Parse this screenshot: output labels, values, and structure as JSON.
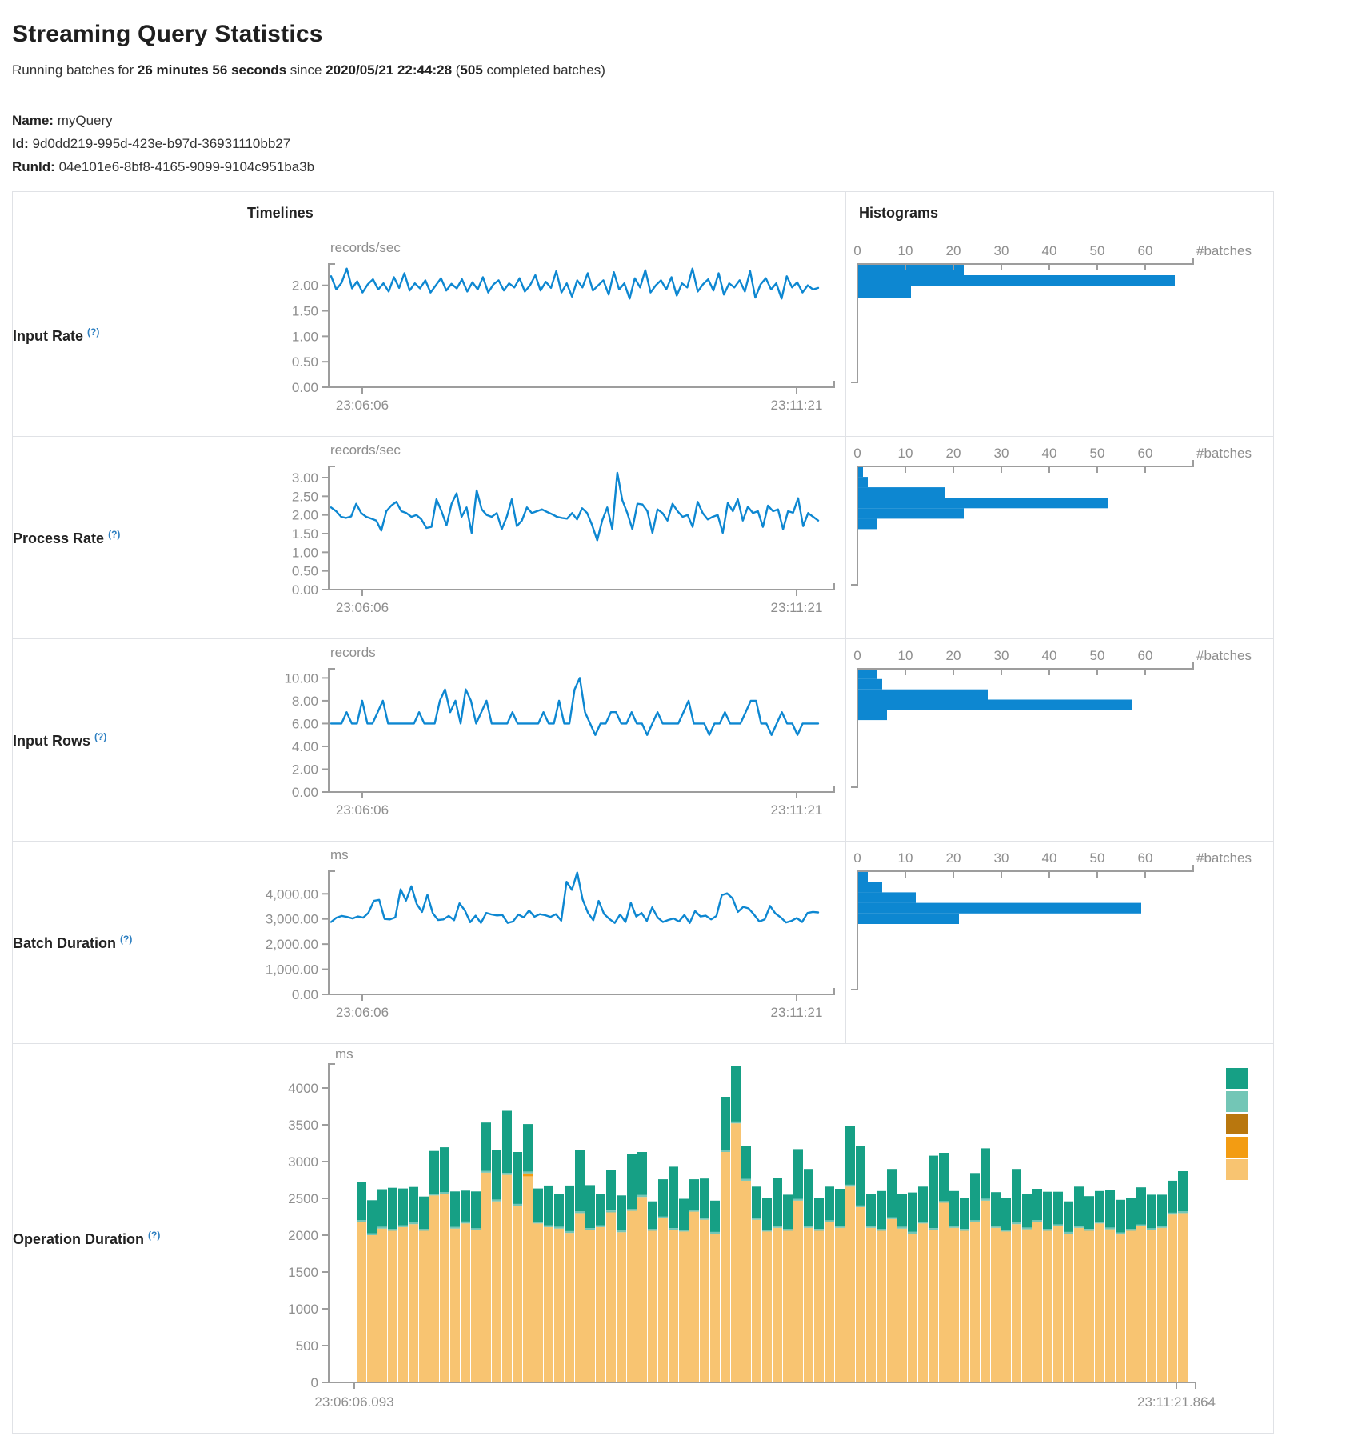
{
  "page": {
    "title": "Streaming Query Statistics",
    "subtitle": {
      "prefix": "Running batches for ",
      "duration": "26 minutes 56 seconds",
      "mid": " since ",
      "since": "2020/05/21 22:44:28",
      "paren_open": " (",
      "batches": "505",
      "paren_close": " completed batches)"
    },
    "meta": {
      "name_label": "Name:",
      "name": "myQuery",
      "id_label": "Id:",
      "id": "9d0dd219-995d-423e-b97d-36931110bb27",
      "runid_label": "RunId:",
      "runid": "04e101e6-8bf8-4165-9099-9104c951ba3b"
    }
  },
  "table": {
    "header": {
      "timelines": "Timelines",
      "histograms": "Histograms"
    }
  },
  "colors": {
    "accent_blue": "#0d87d1",
    "axis": "#9d9d9d",
    "tick_text": "#8e8e8e",
    "help": "#2d7fc1",
    "green": "#16a085",
    "light_teal": "#73c6b6",
    "dark_gold": "#b9770e",
    "orange": "#f39c12",
    "tan": "#f8c471",
    "border": "#e0e2e6"
  },
  "chart_data": [
    {
      "row": "input-rate",
      "label": "Input Rate",
      "help": "(?)",
      "type": "line",
      "timeline": {
        "unit": "records/sec",
        "ymax": 2.42,
        "yticks": [
          0,
          0.5,
          1,
          1.5,
          2
        ],
        "ytick_labels": [
          "0.00",
          "0.50",
          "1.00",
          "1.50",
          "2.00"
        ],
        "x_start": "23:06:06",
        "x_end": "23:11:21",
        "values": [
          2.18,
          1.92,
          2.05,
          2.33,
          1.94,
          2.08,
          1.86,
          2.02,
          2.12,
          1.92,
          2.04,
          1.88,
          2.16,
          1.95,
          2.24,
          1.9,
          2.04,
          1.94,
          2.1,
          1.86,
          2.0,
          2.14,
          1.9,
          2.03,
          1.94,
          2.12,
          1.88,
          2.06,
          1.92,
          2.16,
          1.86,
          2.02,
          2.1,
          1.9,
          2.04,
          1.96,
          2.14,
          1.88,
          2.0,
          2.2,
          1.9,
          2.07,
          1.95,
          2.28,
          1.86,
          2.04,
          1.78,
          2.1,
          1.96,
          2.24,
          1.9,
          2.0,
          2.1,
          1.82,
          2.26,
          1.92,
          2.04,
          1.74,
          2.14,
          1.96,
          2.3,
          1.86,
          2.0,
          2.1,
          1.92,
          2.16,
          1.8,
          2.04,
          1.96,
          2.33,
          1.88,
          2.02,
          2.12,
          1.9,
          2.24,
          1.82,
          2.04,
          1.96,
          2.1,
          1.88,
          2.28,
          1.76,
          2.02,
          2.14,
          1.92,
          2.04,
          1.74,
          2.18,
          1.96,
          2.06,
          1.86,
          2.0,
          1.92,
          1.95
        ]
      },
      "histogram": {
        "unit": "#batches",
        "xmax": 70,
        "xticks": [
          0,
          10,
          20,
          30,
          40,
          50,
          60
        ],
        "bins": [
          {
            "lo": 2.2,
            "hi": 2.42,
            "count": 22
          },
          {
            "lo": 1.98,
            "hi": 2.2,
            "count": 66
          },
          {
            "lo": 1.76,
            "hi": 1.98,
            "count": 11
          }
        ]
      }
    },
    {
      "row": "process-rate",
      "label": "Process Rate",
      "help": "(?)",
      "type": "line",
      "timeline": {
        "unit": "records/sec",
        "ymax": 3.3,
        "yticks": [
          0,
          0.5,
          1,
          1.5,
          2,
          2.5,
          3
        ],
        "ytick_labels": [
          "0.00",
          "0.50",
          "1.00",
          "1.50",
          "2.00",
          "2.50",
          "3.00"
        ],
        "x_start": "23:06:06",
        "x_end": "23:11:21",
        "values": [
          2.2,
          2.1,
          1.95,
          1.92,
          1.96,
          2.3,
          2.05,
          1.95,
          1.9,
          1.85,
          1.58,
          2.1,
          2.25,
          2.35,
          2.1,
          2.05,
          1.95,
          2.0,
          1.88,
          1.65,
          1.68,
          2.42,
          2.1,
          1.72,
          2.3,
          2.58,
          1.95,
          2.2,
          1.52,
          2.66,
          2.15,
          2.0,
          1.95,
          2.05,
          1.62,
          1.95,
          2.42,
          1.7,
          1.85,
          2.2,
          2.05,
          2.1,
          2.15,
          2.08,
          2.02,
          1.95,
          1.92,
          1.9,
          2.05,
          1.88,
          2.18,
          2.05,
          1.72,
          1.32,
          1.85,
          2.2,
          1.62,
          3.13,
          2.4,
          2.05,
          1.62,
          2.3,
          2.28,
          2.1,
          1.52,
          2.15,
          2.05,
          1.85,
          2.3,
          2.1,
          1.95,
          2.0,
          1.68,
          2.35,
          2.05,
          1.88,
          1.95,
          2.0,
          1.52,
          2.32,
          2.1,
          2.42,
          1.85,
          2.22,
          2.05,
          2.1,
          1.68,
          2.25,
          2.1,
          2.15,
          1.62,
          2.1,
          2.06,
          2.45,
          1.7,
          2.05,
          1.95,
          1.85
        ]
      },
      "histogram": {
        "unit": "#batches",
        "xmax": 70,
        "xticks": [
          0,
          10,
          20,
          30,
          40,
          50,
          60
        ],
        "bins": [
          {
            "lo": 3.02,
            "hi": 3.3,
            "count": 1
          },
          {
            "lo": 2.74,
            "hi": 3.02,
            "count": 2
          },
          {
            "lo": 2.46,
            "hi": 2.74,
            "count": 18
          },
          {
            "lo": 2.18,
            "hi": 2.46,
            "count": 52
          },
          {
            "lo": 1.9,
            "hi": 2.18,
            "count": 22
          },
          {
            "lo": 1.62,
            "hi": 1.9,
            "count": 4
          }
        ]
      }
    },
    {
      "row": "input-rows",
      "label": "Input Rows",
      "help": "(?)",
      "type": "line",
      "timeline": {
        "unit": "records",
        "ymax": 10.8,
        "yticks": [
          0,
          2,
          4,
          6,
          8,
          10
        ],
        "ytick_labels": [
          "0.00",
          "2.00",
          "4.00",
          "6.00",
          "8.00",
          "10.00"
        ],
        "x_start": "23:06:06",
        "x_end": "23:11:21",
        "values": [
          6,
          6,
          6,
          7,
          6,
          6,
          8,
          6,
          6,
          7,
          8,
          6,
          6,
          6,
          6,
          6,
          6,
          7,
          6,
          6,
          6,
          8,
          9,
          7,
          8,
          6,
          9,
          8,
          6,
          7,
          8,
          6,
          6,
          6,
          6,
          7,
          6,
          6,
          6,
          6,
          6,
          7,
          6,
          6,
          8,
          6,
          6,
          9,
          10,
          7,
          6,
          5,
          6,
          6,
          7,
          7,
          6,
          6,
          7,
          6,
          6,
          5,
          6,
          7,
          6,
          6,
          6,
          6,
          7,
          8,
          6,
          6,
          6,
          5,
          6,
          6,
          7,
          6,
          6,
          6,
          7,
          8,
          8,
          6,
          6,
          5,
          6,
          7,
          6,
          6,
          5,
          6,
          6,
          6,
          6
        ]
      },
      "histogram": {
        "unit": "#batches",
        "xmax": 70,
        "xticks": [
          0,
          10,
          20,
          30,
          40,
          50,
          60
        ],
        "bins": [
          {
            "lo": 9.9,
            "hi": 10.8,
            "count": 4
          },
          {
            "lo": 9.0,
            "hi": 9.9,
            "count": 5
          },
          {
            "lo": 8.1,
            "hi": 9.0,
            "count": 27
          },
          {
            "lo": 7.2,
            "hi": 8.1,
            "count": 57
          },
          {
            "lo": 6.3,
            "hi": 7.2,
            "count": 6
          }
        ]
      }
    },
    {
      "row": "batch-duration",
      "label": "Batch Duration",
      "help": "(?)",
      "type": "line",
      "timeline": {
        "unit": "ms",
        "ymax": 4900,
        "yticks": [
          0,
          1000,
          2000,
          3000,
          4000
        ],
        "ytick_labels": [
          "0.00",
          "1,000.00",
          "2,000.00",
          "3,000.00",
          "4,000.00"
        ],
        "x_start": "23:06:06",
        "x_end": "23:11:21",
        "values": [
          2880,
          3050,
          3120,
          3080,
          3020,
          3100,
          3050,
          3250,
          3720,
          3760,
          3000,
          2980,
          3060,
          4180,
          3730,
          4300,
          3600,
          3280,
          3960,
          3230,
          2960,
          2980,
          3120,
          2950,
          3620,
          3340,
          2870,
          3130,
          2840,
          3240,
          3180,
          3140,
          3160,
          2840,
          2900,
          3180,
          3060,
          3340,
          3090,
          3190,
          3150,
          3080,
          3190,
          2930,
          4480,
          4160,
          4850,
          3780,
          3250,
          2950,
          3720,
          3200,
          3000,
          2840,
          3180,
          2880,
          3640,
          3100,
          3240,
          2920,
          3460,
          3060,
          2880,
          2960,
          3020,
          2900,
          3160,
          2840,
          3320,
          3100,
          3130,
          2980,
          3120,
          3950,
          4020,
          3820,
          3280,
          3480,
          3420,
          3180,
          2900,
          2980,
          3520,
          3220,
          3060,
          2860,
          2920,
          3040,
          2880,
          3240,
          3280,
          3260
        ]
      },
      "histogram": {
        "unit": "#batches",
        "xmax": 70,
        "xticks": [
          0,
          10,
          20,
          30,
          40,
          50,
          60
        ],
        "bins": [
          {
            "lo": 4480,
            "hi": 4900,
            "count": 2
          },
          {
            "lo": 4060,
            "hi": 4480,
            "count": 5
          },
          {
            "lo": 3640,
            "hi": 4060,
            "count": 12
          },
          {
            "lo": 3220,
            "hi": 3640,
            "count": 59
          },
          {
            "lo": 2800,
            "hi": 3220,
            "count": 21
          }
        ]
      }
    },
    {
      "row": "operation-duration",
      "label": "Operation Duration",
      "help": "(?)",
      "type": "stacked-bar",
      "unit": "ms",
      "yticks": [
        0,
        500,
        1000,
        1500,
        2000,
        2500,
        3000,
        3500,
        4000
      ],
      "ymax": 4450,
      "x_start": "23:06:06.093",
      "x_end": "23:11:21.864",
      "legend_colors": [
        "#16a085",
        "#73c6b6",
        "#b9770e",
        "#f39c12",
        "#f8c471"
      ],
      "stack_colors": [
        "#f8c471",
        "#f39c12",
        "#73c6b6",
        "#16a085"
      ],
      "bars": [
        [
          2180,
          0,
          25,
          520
        ],
        [
          2000,
          0,
          25,
          450
        ],
        [
          2090,
          0,
          25,
          510
        ],
        [
          2060,
          0,
          25,
          560
        ],
        [
          2110,
          0,
          25,
          500
        ],
        [
          2150,
          0,
          25,
          480
        ],
        [
          2060,
          0,
          25,
          440
        ],
        [
          2540,
          0,
          25,
          580
        ],
        [
          2560,
          0,
          25,
          610
        ],
        [
          2090,
          0,
          25,
          480
        ],
        [
          2160,
          0,
          25,
          420
        ],
        [
          2070,
          0,
          25,
          500
        ],
        [
          2850,
          0,
          25,
          655
        ],
        [
          2460,
          0,
          25,
          675
        ],
        [
          2820,
          0,
          25,
          845
        ],
        [
          2400,
          0,
          25,
          705
        ],
        [
          2800,
          40,
          25,
          645
        ],
        [
          2160,
          0,
          25,
          450
        ],
        [
          2110,
          0,
          25,
          540
        ],
        [
          2090,
          0,
          25,
          445
        ],
        [
          2030,
          0,
          25,
          620
        ],
        [
          2300,
          0,
          25,
          835
        ],
        [
          2070,
          0,
          25,
          585
        ],
        [
          2110,
          0,
          25,
          430
        ],
        [
          2310,
          0,
          25,
          545
        ],
        [
          2040,
          0,
          25,
          475
        ],
        [
          2330,
          0,
          25,
          750
        ],
        [
          2520,
          0,
          25,
          585
        ],
        [
          2060,
          0,
          25,
          375
        ],
        [
          2230,
          0,
          25,
          505
        ],
        [
          2070,
          0,
          25,
          835
        ],
        [
          2050,
          0,
          25,
          420
        ],
        [
          2320,
          0,
          25,
          415
        ],
        [
          2210,
          0,
          25,
          535
        ],
        [
          2020,
          0,
          25,
          425
        ],
        [
          3130,
          0,
          25,
          725
        ],
        [
          3520,
          0,
          25,
          755
        ],
        [
          2740,
          0,
          25,
          445
        ],
        [
          2210,
          0,
          25,
          425
        ],
        [
          2050,
          0,
          25,
          430
        ],
        [
          2100,
          0,
          25,
          655
        ],
        [
          2060,
          0,
          25,
          465
        ],
        [
          2470,
          0,
          25,
          675
        ],
        [
          2100,
          0,
          25,
          775
        ],
        [
          2060,
          0,
          25,
          420
        ],
        [
          2180,
          0,
          25,
          455
        ],
        [
          2100,
          0,
          25,
          505
        ],
        [
          2660,
          0,
          25,
          795
        ],
        [
          2380,
          0,
          25,
          805
        ],
        [
          2100,
          0,
          25,
          430
        ],
        [
          2060,
          0,
          25,
          515
        ],
        [
          2220,
          0,
          25,
          655
        ],
        [
          2090,
          0,
          25,
          450
        ],
        [
          2020,
          0,
          25,
          535
        ],
        [
          2160,
          0,
          25,
          475
        ],
        [
          2070,
          0,
          25,
          985
        ],
        [
          2440,
          0,
          25,
          655
        ],
        [
          2100,
          0,
          25,
          475
        ],
        [
          2060,
          0,
          25,
          420
        ],
        [
          2180,
          0,
          25,
          640
        ],
        [
          2470,
          0,
          25,
          685
        ],
        [
          2100,
          0,
          25,
          460
        ],
        [
          2050,
          0,
          25,
          425
        ],
        [
          2150,
          0,
          25,
          725
        ],
        [
          2080,
          0,
          25,
          455
        ],
        [
          2180,
          0,
          25,
          425
        ],
        [
          2060,
          0,
          25,
          505
        ],
        [
          2120,
          0,
          25,
          445
        ],
        [
          2020,
          0,
          25,
          415
        ],
        [
          2100,
          0,
          25,
          535
        ],
        [
          2060,
          0,
          25,
          445
        ],
        [
          2160,
          0,
          25,
          415
        ],
        [
          2080,
          0,
          25,
          505
        ],
        [
          2010,
          0,
          25,
          445
        ],
        [
          2060,
          0,
          25,
          415
        ],
        [
          2120,
          0,
          25,
          505
        ],
        [
          2070,
          0,
          25,
          455
        ],
        [
          2100,
          0,
          25,
          425
        ],
        [
          2280,
          0,
          25,
          435
        ],
        [
          2300,
          0,
          25,
          545
        ]
      ]
    }
  ]
}
